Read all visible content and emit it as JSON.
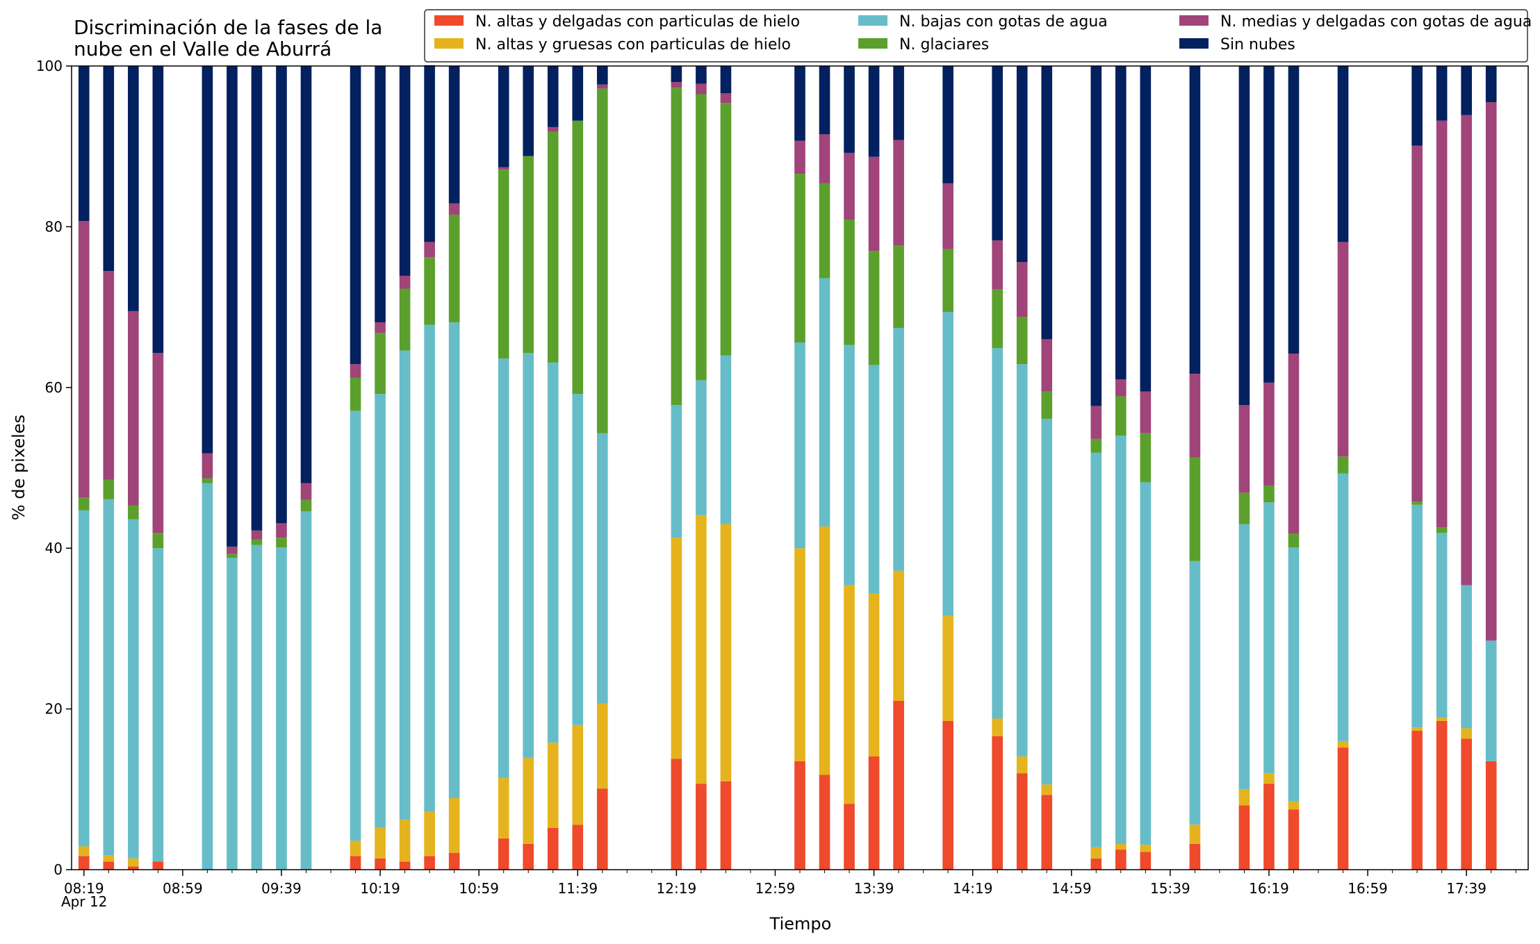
{
  "chart_data": {
    "type": "bar",
    "stacked": true,
    "title": "Discriminación de la fases de la\nnube en el Valle de Aburrá",
    "xlabel": "Tiempo",
    "ylabel": "% de pixeles",
    "ylim": [
      0,
      100
    ],
    "yticks": [
      0,
      20,
      40,
      60,
      80,
      100
    ],
    "x_date_label": "Apr 12",
    "xlim": [
      "08:14",
      "18:04"
    ],
    "x_major_ticks": [
      "08:19",
      "08:59",
      "09:39",
      "10:19",
      "10:59",
      "11:39",
      "12:19",
      "12:59",
      "13:39",
      "14:19",
      "14:59",
      "15:39",
      "16:19",
      "16:59",
      "17:39"
    ],
    "x_minor_tick_step_minutes": 10,
    "bar_width_minutes": 4.4,
    "legend": {
      "placement": "top-right",
      "columns": 3
    },
    "x": [
      "08:19",
      "08:29",
      "08:39",
      "08:49",
      "09:09",
      "09:19",
      "09:29",
      "09:39",
      "09:49",
      "10:09",
      "10:19",
      "10:29",
      "10:39",
      "10:49",
      "11:09",
      "11:19",
      "11:29",
      "11:39",
      "11:49",
      "12:19",
      "12:29",
      "12:39",
      "13:09",
      "13:19",
      "13:29",
      "13:39",
      "13:49",
      "14:09",
      "14:29",
      "14:39",
      "14:49",
      "15:09",
      "15:19",
      "15:29",
      "15:49",
      "16:09",
      "16:19",
      "16:29",
      "16:49",
      "17:19",
      "17:29",
      "17:39",
      "17:49"
    ],
    "series": [
      {
        "name": "N. altas y delgadas con particulas de hielo",
        "color": "#ee4a2b",
        "values": [
          1.7,
          1.0,
          0.4,
          1.0,
          0,
          0,
          0,
          0,
          0,
          1.7,
          1.4,
          1.0,
          1.7,
          2.1,
          3.9,
          3.2,
          5.2,
          5.6,
          10.1,
          13.8,
          10.7,
          11.0,
          13.5,
          11.8,
          8.2,
          14.1,
          21.0,
          18.5,
          16.6,
          12.0,
          9.3,
          1.4,
          2.5,
          2.2,
          3.2,
          8.0,
          10.7,
          7.5,
          15.2,
          17.3,
          18.5,
          16.3,
          13.5
        ]
      },
      {
        "name": "N. altas y gruesas con particulas de hielo",
        "color": "#e5b31d",
        "values": [
          1.2,
          0.8,
          1.0,
          0,
          0,
          0,
          0,
          0,
          0,
          1.9,
          3.8,
          5.2,
          5.5,
          6.8,
          7.5,
          10.7,
          10.6,
          12.4,
          10.6,
          27.5,
          33.4,
          32.0,
          26.5,
          30.9,
          27.2,
          20.3,
          16.2,
          13.1,
          2.2,
          2.1,
          1.3,
          1.4,
          0.7,
          0.9,
          2.4,
          2.0,
          1.3,
          1.0,
          0.8,
          0.4,
          0.4,
          1.3,
          0
        ]
      },
      {
        "name": "N. bajas con gotas de agua",
        "color": "#66bdc8",
        "values": [
          41.8,
          44.3,
          42.2,
          39.0,
          48.1,
          38.8,
          40.4,
          40.1,
          44.6,
          53.5,
          54.0,
          58.4,
          60.6,
          59.2,
          52.2,
          50.4,
          47.3,
          41.2,
          33.6,
          16.5,
          16.8,
          21.0,
          25.6,
          30.9,
          29.9,
          28.4,
          30.2,
          37.8,
          46.1,
          48.8,
          45.5,
          49.1,
          50.8,
          45.1,
          32.8,
          33.0,
          33.7,
          31.6,
          33.3,
          27.7,
          23.0,
          17.8,
          15.0
        ]
      },
      {
        "name": "N. glaciares",
        "color": "#5ba02c",
        "values": [
          1.6,
          2.4,
          1.7,
          1.9,
          0.6,
          0.5,
          0.7,
          1.2,
          1.4,
          4.1,
          7.6,
          7.7,
          8.4,
          13.4,
          23.5,
          24.5,
          28.7,
          34.0,
          42.9,
          39.5,
          35.6,
          31.4,
          21.0,
          11.8,
          15.6,
          14.2,
          10.3,
          7.8,
          7.3,
          5.9,
          3.4,
          1.7,
          4.9,
          6.1,
          12.9,
          3.9,
          2.1,
          1.7,
          2.1,
          0.4,
          0.7,
          0,
          0
        ]
      },
      {
        "name": "N. medias y delgadas con gotas de agua",
        "color": "#a0447a",
        "values": [
          34.4,
          26.0,
          24.2,
          22.4,
          3.1,
          0.9,
          1.1,
          1.8,
          2.1,
          1.7,
          1.3,
          1.6,
          1.9,
          1.4,
          0.3,
          0,
          0.6,
          0,
          0.5,
          0.7,
          1.3,
          1.2,
          4.1,
          6.1,
          8.3,
          11.7,
          13.1,
          8.2,
          6.1,
          6.8,
          6.5,
          4.1,
          2.1,
          5.2,
          10.4,
          10.9,
          12.8,
          22.4,
          26.7,
          44.3,
          50.6,
          58.5,
          67.0
        ]
      },
      {
        "name": "Sin nubes",
        "color": "#03205f",
        "values": [
          19.3,
          25.5,
          30.5,
          35.7,
          48.2,
          59.8,
          57.8,
          56.9,
          51.9,
          37.1,
          31.9,
          26.1,
          22.0,
          17.1,
          12.6,
          11.2,
          7.6,
          6.8,
          2.3,
          2.0,
          2.2,
          3.4,
          9.3,
          8.5,
          10.8,
          11.3,
          9.2,
          14.6,
          21.7,
          24.4,
          34.0,
          42.3,
          39.0,
          40.5,
          38.3,
          42.2,
          39.4,
          35.8,
          21.9,
          9.9,
          6.8,
          6.1,
          4.5
        ]
      }
    ]
  }
}
